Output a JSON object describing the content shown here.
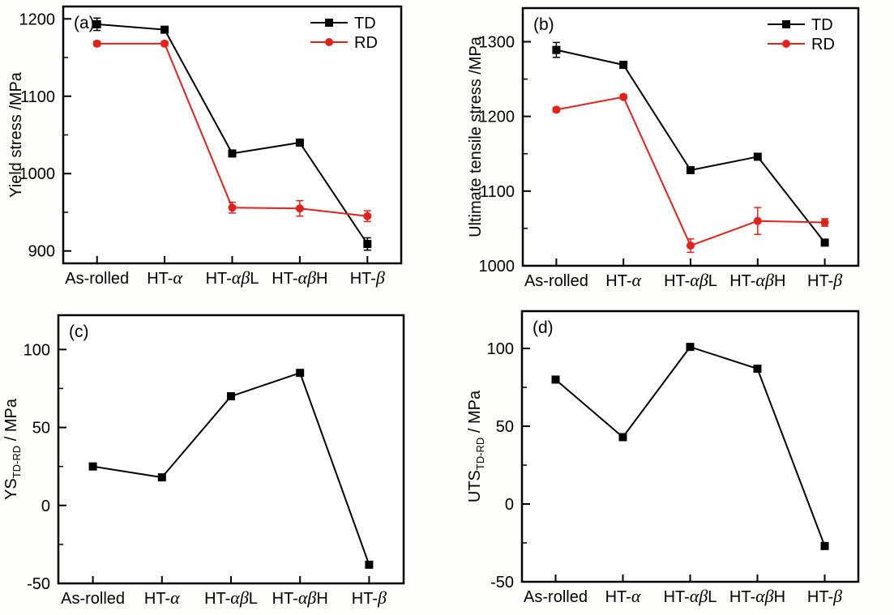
{
  "chart_data": [
    {
      "type": "line",
      "panel_label": "(a)",
      "ylabel": "Yield stress /MPa",
      "xlabel": "",
      "categories": [
        "As-rolled",
        "HT-α",
        "HT-αβL",
        "HT-αβH",
        "HT-β"
      ],
      "ylim": [
        884,
        1216
      ],
      "yticks": [
        900,
        1000,
        1100,
        1200
      ],
      "minor_tick_step": 50,
      "grid": false,
      "legend_visible": true,
      "legend_position": "top-right",
      "series": [
        {
          "name": "TD",
          "color": "#000000",
          "marker": "square",
          "values": [
            1193,
            1186,
            1026,
            1040,
            909
          ],
          "errors": [
            8,
            3,
            3,
            4,
            8
          ]
        },
        {
          "name": "RD",
          "color": "#e3211b",
          "marker": "circle",
          "values": [
            1168,
            1168,
            956,
            955,
            945
          ],
          "errors": [
            3,
            3,
            7,
            10,
            7
          ]
        }
      ]
    },
    {
      "type": "line",
      "panel_label": "(b)",
      "ylabel": "Ultimate tensile stress /MPa",
      "xlabel": "",
      "categories": [
        "As-rolled",
        "HT-α",
        "HT-αβL",
        "HT-αβH",
        "HT-β"
      ],
      "ylim": [
        1000,
        1345
      ],
      "yticks": [
        1000,
        1100,
        1200,
        1300
      ],
      "minor_tick_step": 50,
      "grid": false,
      "legend_visible": true,
      "legend_position": "top-right",
      "series": [
        {
          "name": "TD",
          "color": "#000000",
          "marker": "square",
          "values": [
            1289,
            1269,
            1128,
            1146,
            1031
          ],
          "errors": [
            10,
            4,
            4,
            4,
            3
          ]
        },
        {
          "name": "RD",
          "color": "#e3211b",
          "marker": "circle",
          "values": [
            1209,
            1226,
            1027,
            1060,
            1058
          ],
          "errors": [
            3,
            3,
            9,
            18,
            5
          ]
        }
      ]
    },
    {
      "type": "line",
      "panel_label": "(c)",
      "ylabel": {
        "pre": "YS",
        "sub": "TD-RD",
        "post": "/ MPa"
      },
      "xlabel": "",
      "categories": [
        "As-rolled",
        "HT-α",
        "HT-αβL",
        "HT-αβH",
        "HT-β"
      ],
      "ylim": [
        -50,
        122
      ],
      "yticks": [
        -50,
        0,
        50,
        100
      ],
      "minor_tick_step": 25,
      "grid": false,
      "legend_visible": false,
      "series": [
        {
          "name": "TD-RD",
          "color": "#000000",
          "marker": "square",
          "values": [
            25,
            18,
            70,
            85,
            -38
          ],
          "errors": [
            0,
            0,
            0,
            0,
            0
          ]
        }
      ]
    },
    {
      "type": "line",
      "panel_label": "(d)",
      "ylabel": {
        "pre": "UTS",
        "sub": "TD-RD",
        "post": "/ MPa"
      },
      "xlabel": "",
      "categories": [
        "As-rolled",
        "HT-α",
        "HT-αβL",
        "HT-αβH",
        "HT-β"
      ],
      "ylim": [
        -50,
        124
      ],
      "yticks": [
        -50,
        0,
        50,
        100
      ],
      "minor_tick_step": 25,
      "grid": false,
      "legend_visible": false,
      "series": [
        {
          "name": "TD-RD",
          "color": "#000000",
          "marker": "square",
          "values": [
            80,
            43,
            101,
            87,
            -27
          ],
          "errors": [
            0,
            0,
            0,
            0,
            0
          ]
        }
      ]
    }
  ]
}
